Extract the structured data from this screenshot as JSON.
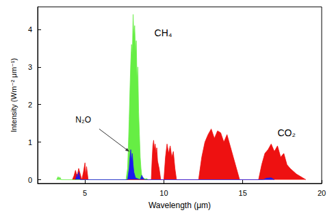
{
  "chart_data": {
    "type": "line",
    "x_label": "Wavelength (μm)",
    "y_label": "Intensity (Wm⁻² μm⁻¹)",
    "xlim": [
      2,
      20
    ],
    "xticks": [
      5,
      10,
      15,
      20
    ],
    "ylim": [
      -0.1,
      4.6
    ],
    "yticks": [
      0,
      1,
      2,
      3,
      4
    ],
    "grid": false,
    "annotations": [
      {
        "text": "CH₄"
      },
      {
        "text": "N₂O"
      },
      {
        "text": "CO₂"
      }
    ],
    "series": [
      {
        "name": "CO₂",
        "color": "#ee1111",
        "x": [
          4.2,
          4.3,
          4.4,
          4.5,
          4.6,
          4.8,
          4.9,
          5.0,
          5.05,
          5.1,
          5.2,
          9.2,
          9.25,
          9.3,
          9.35,
          9.4,
          9.45,
          9.5,
          9.55,
          9.6,
          9.7,
          9.8,
          10.0,
          10.1,
          10.2,
          10.3,
          10.4,
          10.5,
          10.6,
          10.7,
          10.8,
          12.2,
          12.4,
          12.6,
          12.8,
          13.0,
          13.2,
          13.4,
          13.6,
          13.8,
          14.0,
          14.2,
          14.4,
          14.6,
          14.8,
          16.0,
          16.2,
          16.4,
          16.6,
          16.8,
          17.0,
          17.2,
          17.4,
          17.6,
          17.8,
          18.0,
          18.4,
          18.8,
          19.0
        ],
        "values": [
          0,
          0.1,
          0.25,
          0.08,
          0.3,
          0,
          0.2,
          0.45,
          0.1,
          0.35,
          0,
          0,
          0.5,
          0.9,
          1.05,
          0.8,
          0.95,
          0.7,
          0.85,
          0.5,
          0.3,
          0,
          0,
          0.6,
          0.95,
          0.7,
          0.9,
          0.6,
          0.75,
          0.3,
          0,
          0,
          0.6,
          1.0,
          1.2,
          1.35,
          1.1,
          1.3,
          1.25,
          1.0,
          1.2,
          0.9,
          0.6,
          0.3,
          0,
          0,
          0.4,
          0.7,
          0.8,
          0.95,
          0.75,
          0.9,
          0.6,
          0.7,
          0.4,
          0.3,
          0.15,
          0.05,
          0
        ]
      },
      {
        "name": "CH₄",
        "color": "#66ee44",
        "x": [
          3.2,
          3.3,
          3.35,
          3.4,
          3.5,
          7.6,
          7.7,
          7.75,
          7.8,
          7.85,
          7.9,
          7.95,
          8.0,
          8.05,
          8.1,
          8.15,
          8.2,
          8.25,
          8.3,
          8.35,
          8.4,
          8.45,
          8.5,
          8.55,
          8.6,
          8.7,
          8.8,
          8.9,
          9.0
        ],
        "values": [
          0,
          0.08,
          0.02,
          0.07,
          0,
          0,
          0.3,
          0.9,
          1.6,
          2.4,
          3.1,
          3.6,
          3.3,
          4.4,
          3.8,
          4.1,
          3.4,
          3.7,
          2.6,
          3.0,
          1.8,
          1.2,
          0.6,
          0.3,
          0.1,
          0.05,
          0.02,
          0.03,
          0
        ]
      },
      {
        "name": "N₂O",
        "color": "#1a1aee",
        "x": [
          4.4,
          4.5,
          4.55,
          4.6,
          4.7,
          7.7,
          7.8,
          7.85,
          7.9,
          7.95,
          8.0,
          8.05,
          8.1,
          8.2,
          8.5,
          8.6,
          8.7,
          8.8,
          16.3,
          16.5,
          16.8,
          17.0
        ],
        "values": [
          0,
          0.15,
          0.05,
          0.2,
          0,
          0,
          0.3,
          0.6,
          0.8,
          0.5,
          0.7,
          0.4,
          0.2,
          0.05,
          0,
          0.12,
          0.03,
          0,
          0,
          0.04,
          0.05,
          0
        ]
      }
    ]
  }
}
